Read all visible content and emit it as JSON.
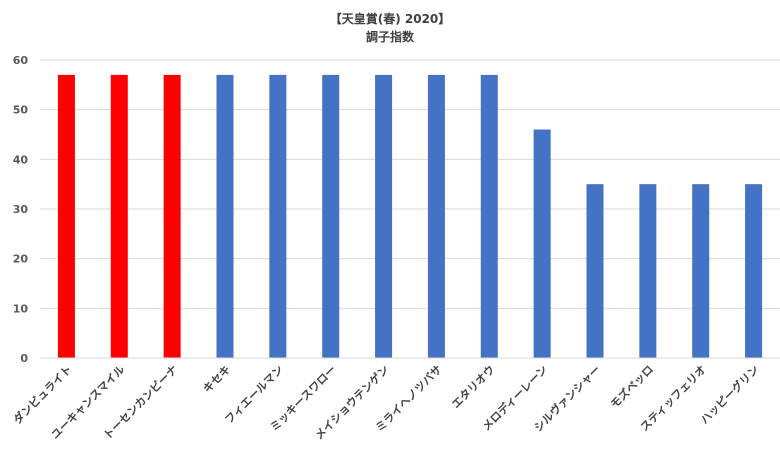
{
  "chart_data": {
    "type": "bar",
    "title": "【天皇賞(春) 2020】",
    "subtitle": "調子指数",
    "xlabel": "",
    "ylabel": "",
    "ylim": [
      0,
      60
    ],
    "yticks": [
      0,
      10,
      20,
      30,
      40,
      50,
      60
    ],
    "grid": true,
    "legend": "none",
    "categories": [
      "ダンビュライト",
      "ユーキャンスマイル",
      "トーセンカンビーナ",
      "キセキ",
      "フィエールマン",
      "ミッキースワロー",
      "メイショウテンゲン",
      "ミライヘノツバサ",
      "エタリオウ",
      "メロディーレーン",
      "シルヴァンシャー",
      "モズベッロ",
      "スティッフェリオ",
      "ハッピーグリン"
    ],
    "values": [
      57,
      57,
      57,
      57,
      57,
      57,
      57,
      57,
      57,
      46,
      35,
      35,
      35,
      35
    ],
    "colors": [
      "#ff0000",
      "#ff0000",
      "#ff0000",
      "#4472c4",
      "#4472c4",
      "#4472c4",
      "#4472c4",
      "#4472c4",
      "#4472c4",
      "#4472c4",
      "#4472c4",
      "#4472c4",
      "#4472c4",
      "#4472c4"
    ]
  }
}
